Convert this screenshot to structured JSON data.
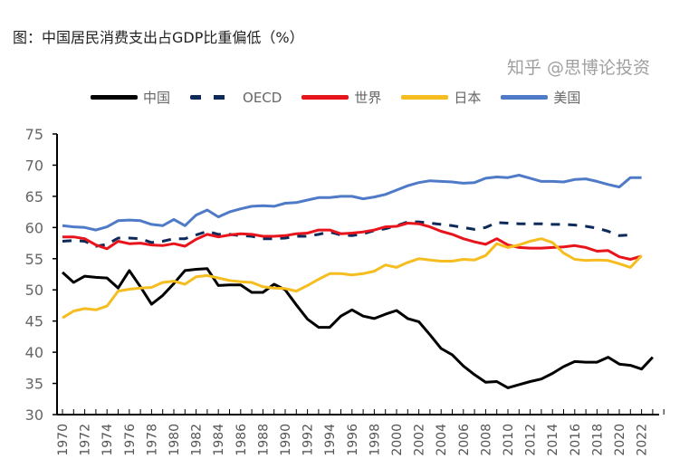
{
  "chart_data": {
    "type": "line",
    "title": "图：中国居民消费支出占GDP比重偏低（%）",
    "xlabel": "",
    "ylabel": "",
    "ylim": [
      30,
      75
    ],
    "yticks": [
      30,
      35,
      40,
      45,
      50,
      55,
      60,
      65,
      70,
      75
    ],
    "xticks": [
      1970,
      1972,
      1974,
      1976,
      1978,
      1980,
      1982,
      1984,
      1986,
      1988,
      1990,
      1992,
      1994,
      1996,
      1998,
      2000,
      2002,
      2004,
      2006,
      2008,
      2010,
      2012,
      2014,
      2016,
      2018,
      2020,
      2022
    ],
    "legend_position": "top",
    "grid": false,
    "x_start": 1970,
    "series": [
      {
        "name": "中国",
        "color": "#000000",
        "dash": false,
        "values": [
          52.8,
          51.2,
          52.2,
          52.0,
          51.9,
          50.3,
          53.1,
          50.5,
          47.7,
          49.1,
          51.0,
          53.1,
          53.3,
          53.4,
          50.7,
          50.8,
          50.8,
          49.6,
          49.6,
          50.9,
          50.0,
          47.6,
          45.3,
          44.0,
          44.0,
          45.8,
          46.8,
          45.8,
          45.4,
          46.1,
          46.7,
          45.4,
          44.9,
          42.8,
          40.6,
          39.6,
          37.8,
          36.4,
          35.2,
          35.3,
          34.3,
          34.8,
          35.3,
          35.7,
          36.6,
          37.7,
          38.5,
          38.4,
          38.4,
          39.2,
          38.1,
          37.9,
          37.3,
          39.2
        ]
      },
      {
        "name": "OECD",
        "color": "#0e2a5a",
        "dash": true,
        "values": [
          57.8,
          57.9,
          57.8,
          57.0,
          57.3,
          58.3,
          58.3,
          58.2,
          57.6,
          57.8,
          58.2,
          58.2,
          58.8,
          59.4,
          58.9,
          58.9,
          58.7,
          58.6,
          58.2,
          58.2,
          58.3,
          58.6,
          58.6,
          58.9,
          59.3,
          58.8,
          58.7,
          59.0,
          59.5,
          59.8,
          60.3,
          60.9,
          60.9,
          60.7,
          60.5,
          60.3,
          60.0,
          59.7,
          60.0,
          60.8,
          60.7,
          60.6,
          60.6,
          60.6,
          60.5,
          60.5,
          60.4,
          60.2,
          59.9,
          59.4,
          58.7,
          58.8
        ]
      },
      {
        "name": "世界",
        "color": "#e8141c",
        "dash": false,
        "values": [
          58.5,
          58.5,
          58.2,
          57.2,
          56.6,
          57.8,
          57.4,
          57.5,
          57.2,
          57.1,
          57.4,
          57.0,
          58.1,
          58.9,
          58.5,
          58.8,
          59.0,
          58.9,
          58.6,
          58.6,
          58.7,
          59.0,
          59.1,
          59.6,
          59.6,
          59.0,
          59.1,
          59.3,
          59.6,
          60.1,
          60.2,
          60.7,
          60.6,
          60.1,
          59.4,
          58.9,
          58.2,
          57.7,
          57.3,
          58.2,
          57.2,
          56.8,
          56.7,
          56.7,
          56.8,
          56.9,
          57.1,
          56.8,
          56.2,
          56.3,
          55.3,
          54.9,
          55.4
        ]
      },
      {
        "name": "日本",
        "color": "#f5bd1f",
        "dash": false,
        "values": [
          45.5,
          46.6,
          47.0,
          46.8,
          47.4,
          49.8,
          50.1,
          50.3,
          50.4,
          51.2,
          51.4,
          50.9,
          52.1,
          52.3,
          51.9,
          51.5,
          51.3,
          51.2,
          50.5,
          50.3,
          50.2,
          49.8,
          50.7,
          51.7,
          52.6,
          52.6,
          52.4,
          52.6,
          53.0,
          54.0,
          53.6,
          54.4,
          55.0,
          54.8,
          54.6,
          54.6,
          54.9,
          54.8,
          55.5,
          57.4,
          56.8,
          57.2,
          57.8,
          58.2,
          57.6,
          55.9,
          54.9,
          54.7,
          54.8,
          54.7,
          54.2,
          53.6,
          55.5
        ]
      },
      {
        "name": "美国",
        "color": "#4f7ac7",
        "dash": false,
        "values": [
          60.3,
          60.1,
          60.0,
          59.6,
          60.1,
          61.1,
          61.2,
          61.1,
          60.5,
          60.3,
          61.3,
          60.3,
          62.0,
          62.8,
          61.7,
          62.5,
          63.0,
          63.4,
          63.5,
          63.4,
          63.9,
          64.0,
          64.4,
          64.8,
          64.8,
          65.0,
          65.0,
          64.6,
          64.9,
          65.3,
          66.0,
          66.7,
          67.2,
          67.5,
          67.4,
          67.3,
          67.1,
          67.2,
          67.9,
          68.1,
          68.0,
          68.4,
          67.9,
          67.4,
          67.4,
          67.3,
          67.7,
          67.8,
          67.4,
          66.9,
          66.5,
          68.0,
          68.0
        ]
      }
    ]
  },
  "watermark": "知乎 @思博论投资"
}
